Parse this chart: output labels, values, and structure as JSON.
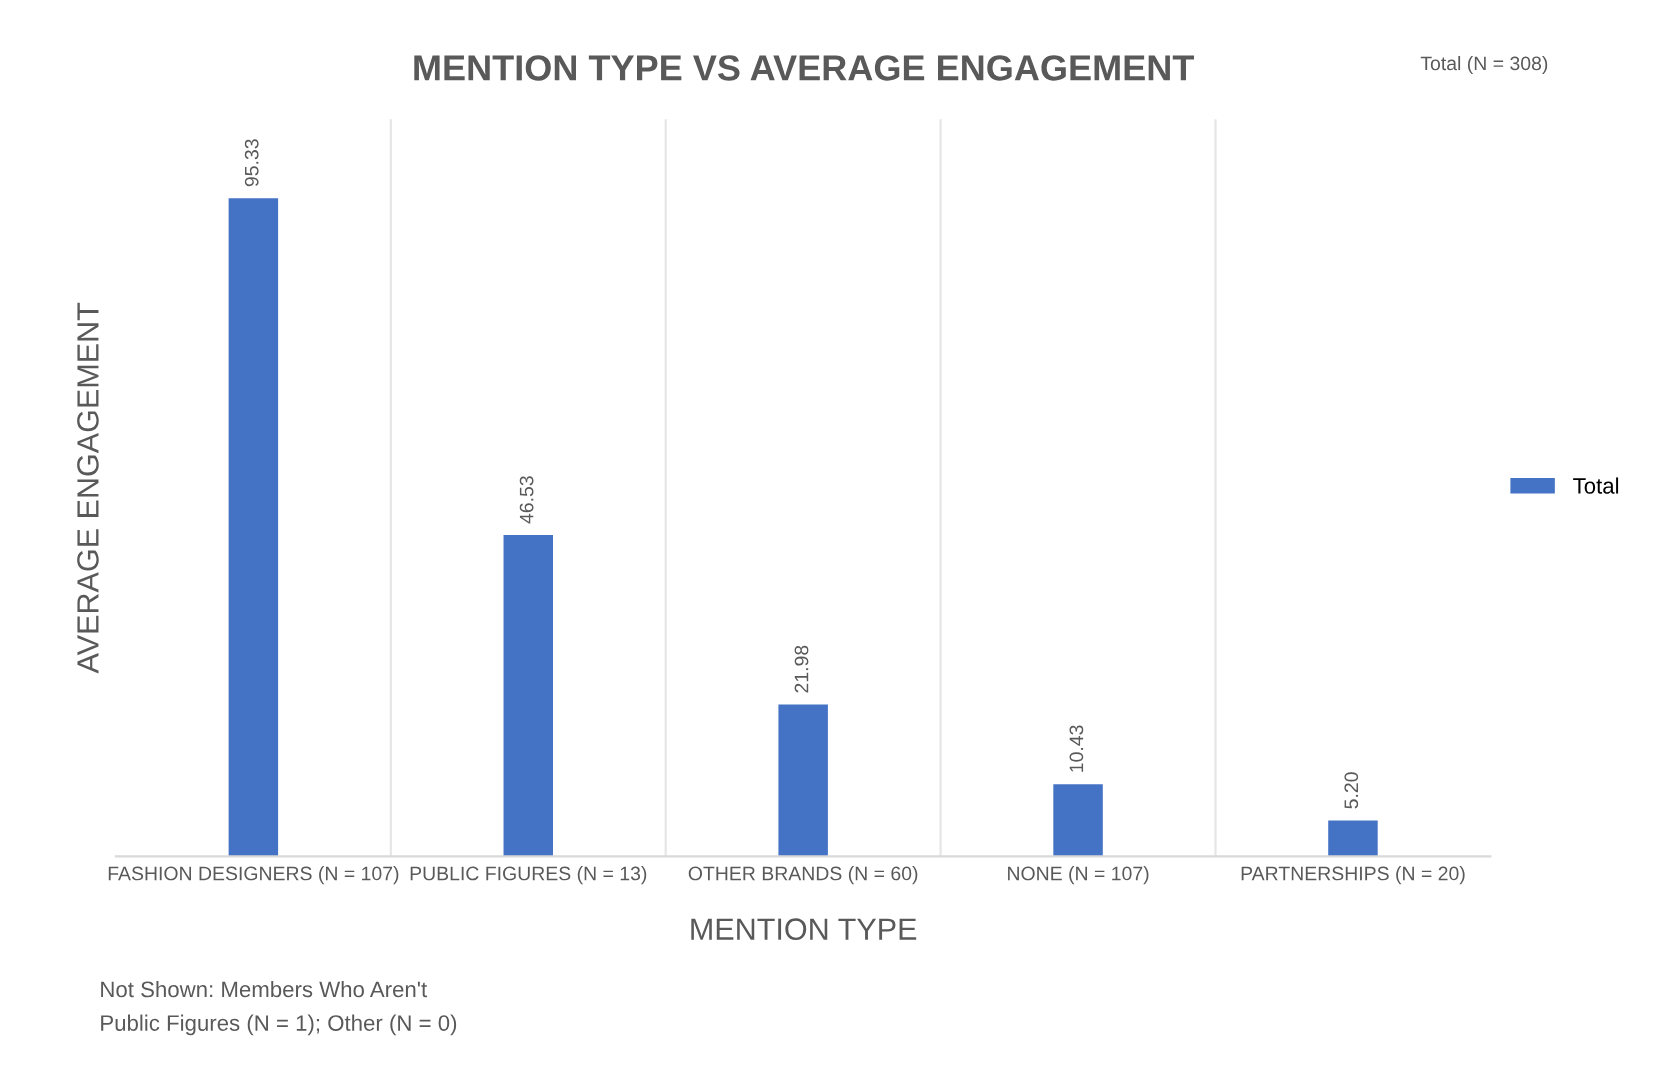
{
  "chart_data": {
    "type": "bar",
    "title": "MENTION TYPE VS AVERAGE ENGAGEMENT",
    "xlabel": "MENTION TYPE",
    "ylabel": "AVERAGE ENGAGEMENT",
    "categories": [
      "FASHION DESIGNERS (N = 107)",
      "PUBLIC FIGURES (N = 13)",
      "OTHER BRANDS (N = 60)",
      "NONE (N = 107)",
      "PARTNERSHIPS (N = 20)"
    ],
    "series": [
      {
        "name": "Total",
        "color": "#4472c4",
        "values": [
          95.33,
          46.53,
          21.98,
          10.43,
          5.2
        ],
        "value_labels": [
          "95.33",
          "46.53",
          "21.98",
          "10.43",
          "5.20"
        ]
      }
    ],
    "legend": "right",
    "grid": false,
    "tick_labels": "x",
    "annotations": [
      "Total (N = 308)",
      "Not Shown: Members Who Aren't\nPublic Figures (N = 1); Other (N = 0)"
    ]
  }
}
